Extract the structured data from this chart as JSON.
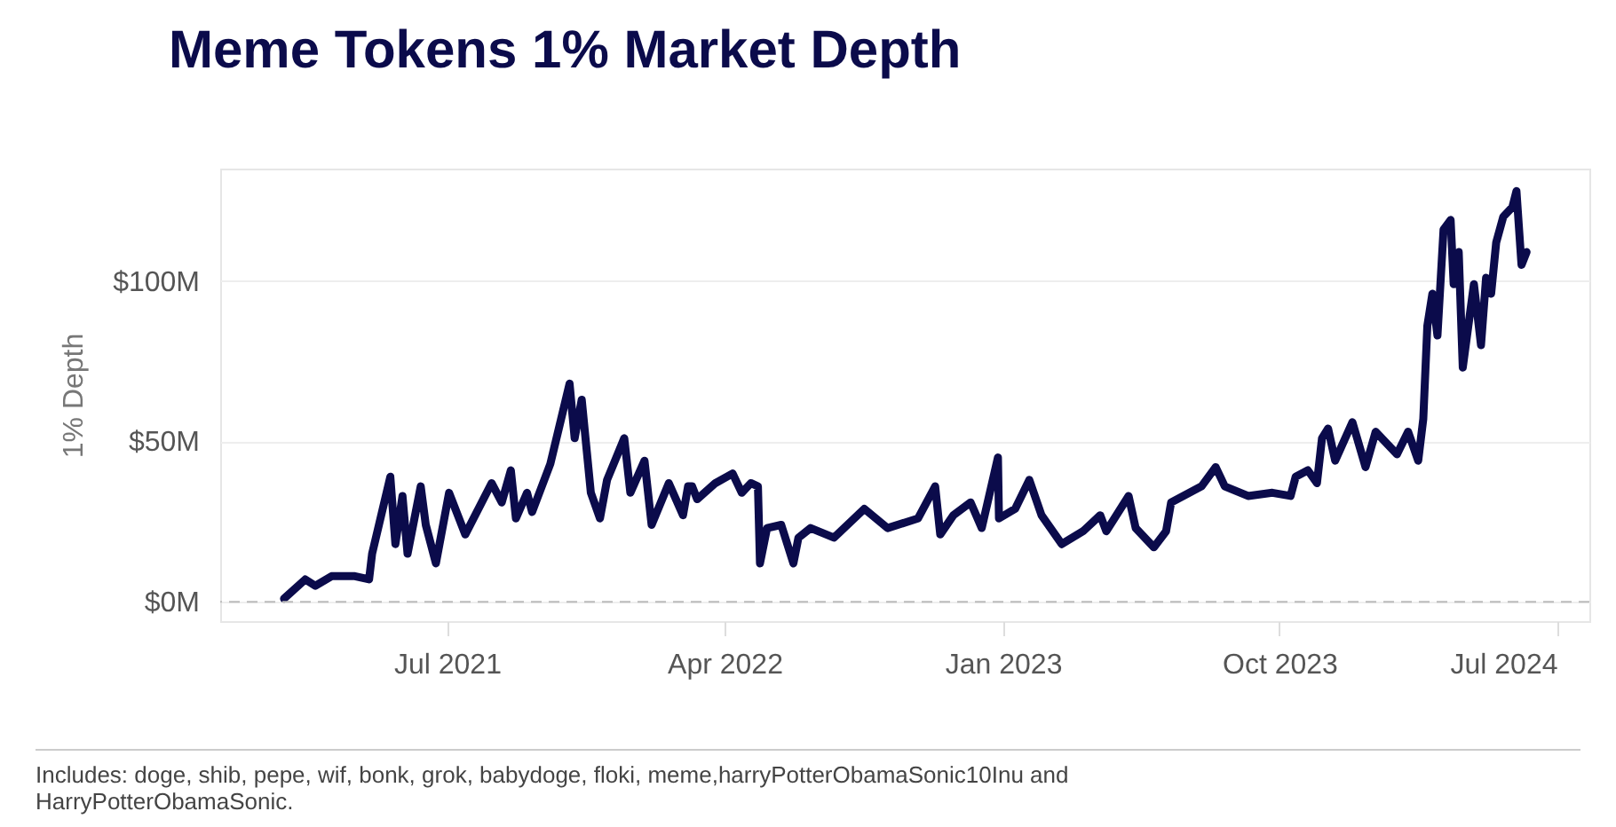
{
  "chart_data": {
    "type": "line",
    "title": "Meme Tokens 1% Market Depth",
    "ylabel": "1% Depth",
    "annotations": [
      "Includes:  doge, shib, pepe, wif, bonk, grok, babydoge, floki, meme,harryPotterObamaSonic10Inu and HarryPotterObamaSonic."
    ],
    "x": [
      "2021-01-21",
      "2021-02-11",
      "2021-02-21",
      "2021-03-09",
      "2021-04-01",
      "2021-04-15",
      "2021-04-18",
      "2021-05-06",
      "2021-05-11",
      "2021-05-18",
      "2021-05-23",
      "2021-06-05",
      "2021-06-10",
      "2021-06-20",
      "2021-07-03",
      "2021-07-19",
      "2021-08-14",
      "2021-08-24",
      "2021-09-02",
      "2021-09-07",
      "2021-09-18",
      "2021-09-23",
      "2021-10-11",
      "2021-10-30",
      "2021-11-04",
      "2021-11-11",
      "2021-11-20",
      "2021-11-29",
      "2021-12-06",
      "2021-12-23",
      "2021-12-29",
      "2022-01-12",
      "2022-01-19",
      "2022-02-05",
      "2022-02-19",
      "2022-02-24",
      "2022-02-28",
      "2022-03-05",
      "2022-03-23",
      "2022-04-09",
      "2022-04-18",
      "2022-04-27",
      "2022-05-04",
      "2022-05-06",
      "2022-05-13",
      "2022-05-27",
      "2022-06-08",
      "2022-06-13",
      "2022-06-25",
      "2022-07-18",
      "2022-08-17",
      "2022-09-09",
      "2022-10-09",
      "2022-10-26",
      "2022-10-31",
      "2022-11-13",
      "2022-11-30",
      "2022-12-11",
      "2022-12-27",
      "2022-12-28",
      "2023-01-13",
      "2023-01-27",
      "2023-02-08",
      "2023-02-28",
      "2023-03-21",
      "2023-04-07",
      "2023-04-13",
      "2023-05-05",
      "2023-05-12",
      "2023-05-30",
      "2023-06-11",
      "2023-06-16",
      "2023-07-16",
      "2023-07-30",
      "2023-08-08",
      "2023-08-31",
      "2023-09-24",
      "2023-10-12",
      "2023-10-17",
      "2023-10-29",
      "2023-11-07",
      "2023-11-12",
      "2023-11-18",
      "2023-11-25",
      "2023-12-12",
      "2023-12-25",
      "2024-01-04",
      "2024-01-25",
      "2024-02-05",
      "2024-02-15",
      "2024-02-20",
      "2024-02-24",
      "2024-02-29",
      "2024-03-05",
      "2024-03-11",
      "2024-03-18",
      "2024-03-21",
      "2024-03-26",
      "2024-03-30",
      "2024-04-10",
      "2024-04-17",
      "2024-04-22",
      "2024-04-27",
      "2024-05-02",
      "2024-05-09",
      "2024-05-18",
      "2024-05-22",
      "2024-05-27",
      "2024-06-01"
    ],
    "series": [
      {
        "color": "#0b0b4b",
        "values": [
          1,
          7,
          5,
          8,
          8,
          7,
          15,
          39,
          18,
          33,
          15,
          36,
          24,
          12,
          34,
          21,
          37,
          31,
          41,
          26,
          34,
          28,
          43,
          68,
          51,
          63,
          34,
          26,
          38,
          51,
          34,
          44,
          24,
          37,
          27,
          36,
          36,
          32,
          37,
          40,
          34,
          37,
          36,
          12,
          23,
          24,
          12,
          20,
          23,
          20,
          29,
          23,
          26,
          36,
          21,
          27,
          31,
          23,
          45,
          26,
          29,
          38,
          27,
          18,
          22,
          27,
          22,
          33,
          23,
          17,
          22,
          31,
          36,
          42,
          36,
          33,
          34,
          33,
          39,
          41,
          37,
          51,
          54,
          44,
          56,
          42,
          53,
          46,
          53,
          44,
          57,
          86,
          96,
          83,
          116,
          119,
          99,
          109,
          73,
          99,
          80,
          101,
          96,
          112,
          120,
          123,
          128,
          105,
          109
        ]
      }
    ],
    "xlim": [
      "2020-11-19",
      "2024-08-02"
    ],
    "xticks": [
      {
        "value": "2021-07-01",
        "label": "Jul 2021"
      },
      {
        "value": "2022-04-01",
        "label": "Apr 2022"
      },
      {
        "value": "2023-01-01",
        "label": "Jan 2023"
      },
      {
        "value": "2023-10-01",
        "label": "Oct 2023"
      },
      {
        "value": "2024-07-01",
        "label": "Jul 2024"
      }
    ],
    "ylim": [
      -6,
      135
    ],
    "yticks": [
      {
        "value": 0,
        "label": "$0M"
      },
      {
        "value": 50,
        "label": "$50M"
      },
      {
        "value": 100,
        "label": "$100M"
      }
    ],
    "ref_lines": [
      {
        "axis": "y",
        "value": 0,
        "color": "#bbbbbb",
        "line_style": "dashed"
      }
    ],
    "grid": "y",
    "line_style": "solid",
    "marker": "none"
  }
}
